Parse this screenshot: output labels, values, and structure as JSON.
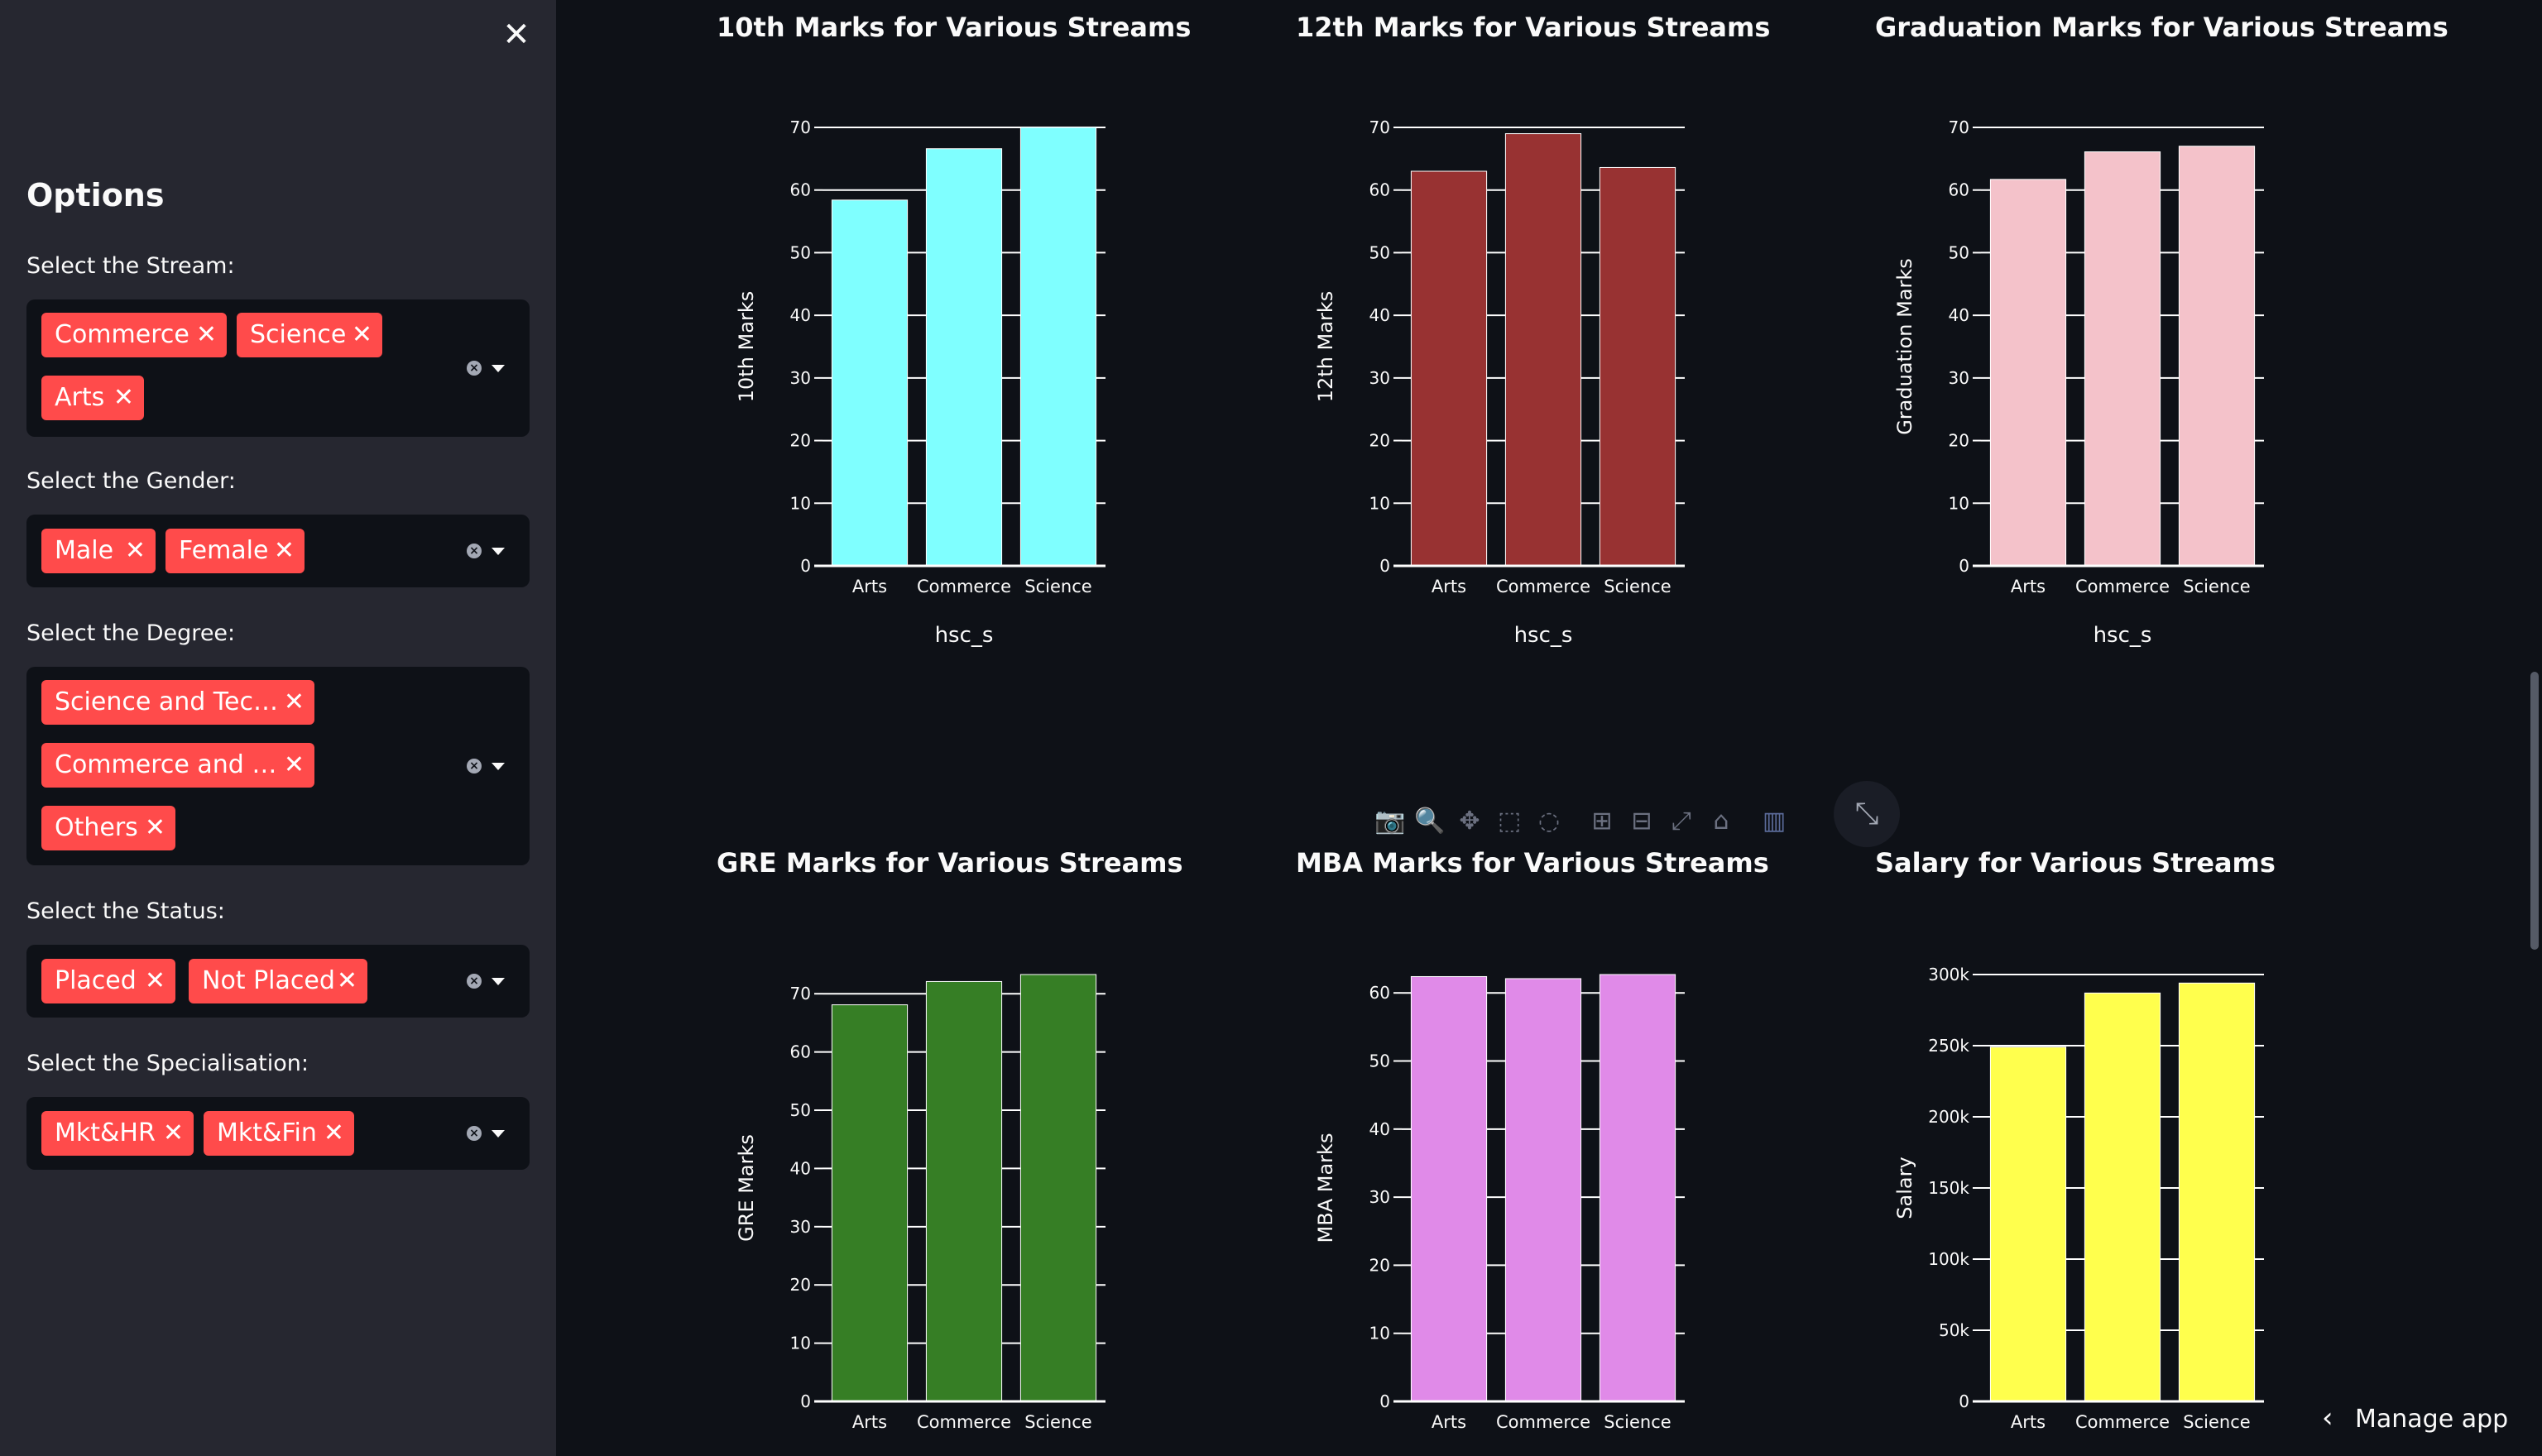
{
  "sidebar": {
    "close_icon": "close-icon",
    "title": "Options",
    "filters": [
      {
        "label": "Select the Stream:",
        "tags": [
          "Commerce",
          "Science",
          "Arts"
        ]
      },
      {
        "label": "Select the Gender:",
        "tags": [
          "Male",
          "Female"
        ]
      },
      {
        "label": "Select the Degree:",
        "tags": [
          "Science and Tec…",
          "Commerce and …",
          "Others"
        ]
      },
      {
        "label": "Select the Status:",
        "tags": [
          "Placed",
          "Not Placed"
        ]
      },
      {
        "label": "Select the Specialisation:",
        "tags": [
          "Mkt&HR",
          "Mkt&Fin"
        ]
      }
    ],
    "tag_color": "#ff4b4b"
  },
  "toolbar": {
    "icons": [
      "camera-icon",
      "zoom-icon",
      "pan-icon",
      "box-select-icon",
      "lasso-select-icon",
      "zoom-in-icon",
      "zoom-out-icon",
      "autoscale-icon",
      "reset-axes-icon",
      "plotly-logo-icon"
    ],
    "expand_icon": "expand-icon"
  },
  "footer": {
    "manage_label": "Manage app"
  },
  "chart_data": [
    {
      "type": "bar",
      "title": "10th Marks for Various Streams",
      "categories": [
        "Arts",
        "Commerce",
        "Science"
      ],
      "values": [
        58.4,
        66.6,
        70.0
      ],
      "xlabel": "hsc_s",
      "ylabel": "10th Marks",
      "ylim": [
        0,
        70
      ],
      "yticks": [
        0,
        10,
        20,
        30,
        40,
        50,
        60,
        70
      ],
      "ytick_labels": [
        "0",
        "10",
        "20",
        "30",
        "40",
        "50",
        "60",
        "70"
      ],
      "color": "#7fffff"
    },
    {
      "type": "bar",
      "title": "12th Marks for Various Streams",
      "categories": [
        "Arts",
        "Commerce",
        "Science"
      ],
      "values": [
        63.0,
        69.0,
        63.6
      ],
      "xlabel": "hsc_s",
      "ylabel": "12th Marks",
      "ylim": [
        0,
        70
      ],
      "yticks": [
        0,
        10,
        20,
        30,
        40,
        50,
        60,
        70
      ],
      "ytick_labels": [
        "0",
        "10",
        "20",
        "30",
        "40",
        "50",
        "60",
        "70"
      ],
      "color": "#983232"
    },
    {
      "type": "bar",
      "title": "Graduation Marks for Various Streams",
      "categories": [
        "Arts",
        "Commerce",
        "Science"
      ],
      "values": [
        61.7,
        66.1,
        67.0
      ],
      "xlabel": "hsc_s",
      "ylabel": "Graduation Marks",
      "ylim": [
        0,
        70
      ],
      "yticks": [
        0,
        10,
        20,
        30,
        40,
        50,
        60,
        70
      ],
      "ytick_labels": [
        "0",
        "10",
        "20",
        "30",
        "40",
        "50",
        "60",
        "70"
      ],
      "color": "#f4c2ca"
    },
    {
      "type": "bar",
      "title": "GRE Marks for Various Streams",
      "categories": [
        "Arts",
        "Commerce",
        "Science"
      ],
      "values": [
        68.1,
        72.1,
        73.3
      ],
      "xlabel": "",
      "ylabel": "GRE Marks",
      "ylim": [
        0,
        73.3
      ],
      "yticks": [
        0,
        10,
        20,
        30,
        40,
        50,
        60,
        70
      ],
      "ytick_labels": [
        "0",
        "10",
        "20",
        "30",
        "40",
        "50",
        "60",
        "70"
      ],
      "color": "#367e25"
    },
    {
      "type": "bar",
      "title": "MBA Marks for Various Streams",
      "categories": [
        "Arts",
        "Commerce",
        "Science"
      ],
      "values": [
        62.4,
        62.1,
        62.7
      ],
      "xlabel": "",
      "ylabel": "MBA Marks",
      "ylim": [
        0,
        62.7
      ],
      "yticks": [
        0,
        10,
        20,
        30,
        40,
        50,
        60
      ],
      "ytick_labels": [
        "0",
        "10",
        "20",
        "30",
        "40",
        "50",
        "60"
      ],
      "color": "#e08ae8"
    },
    {
      "type": "bar",
      "title": "Salary for Various Streams",
      "categories": [
        "Arts",
        "Commerce",
        "Science"
      ],
      "values": [
        249000,
        287000,
        294000
      ],
      "xlabel": "",
      "ylabel": "Salary",
      "ylim": [
        0,
        300000
      ],
      "yticks": [
        0,
        50000,
        100000,
        150000,
        200000,
        250000,
        300000
      ],
      "ytick_labels": [
        "0",
        "50k",
        "100k",
        "150k",
        "200k",
        "250k",
        "300k"
      ],
      "color": "#ffff4d"
    }
  ]
}
